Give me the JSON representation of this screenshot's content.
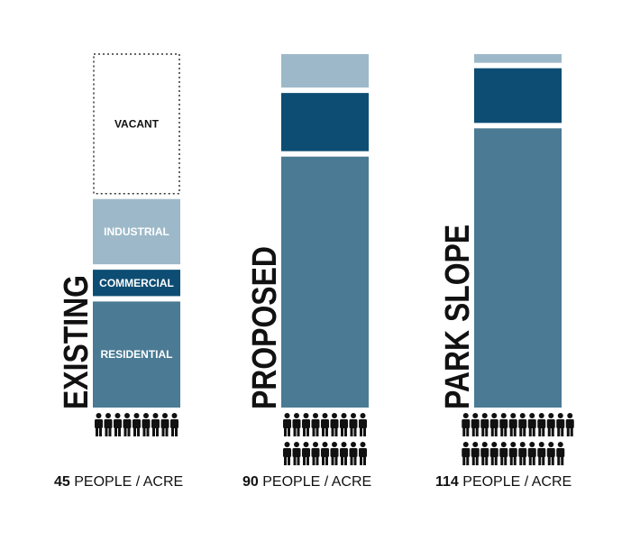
{
  "chart_data": {
    "type": "stacked_bar",
    "categories": [
      "EXISTING",
      "PROPOSED",
      "PARK SLOPE"
    ],
    "series": [
      {
        "name": "RESIDENTIAL",
        "color": "#4a7a94",
        "values": [
          30,
          71,
          79
        ]
      },
      {
        "name": "COMMERCIAL",
        "color": "#0d4d73",
        "values": [
          9,
          18,
          17
        ]
      },
      {
        "name": "INDUSTRIAL",
        "color": "#9db9c9",
        "values": [
          20,
          11,
          4
        ]
      },
      {
        "name": "VACANT",
        "color": "#ffffff",
        "values": [
          41,
          null,
          null
        ]
      }
    ],
    "ylim": [
      0,
      100
    ],
    "density": [
      45,
      90,
      114
    ],
    "density_unit": "PEOPLE / ACRE"
  }
}
